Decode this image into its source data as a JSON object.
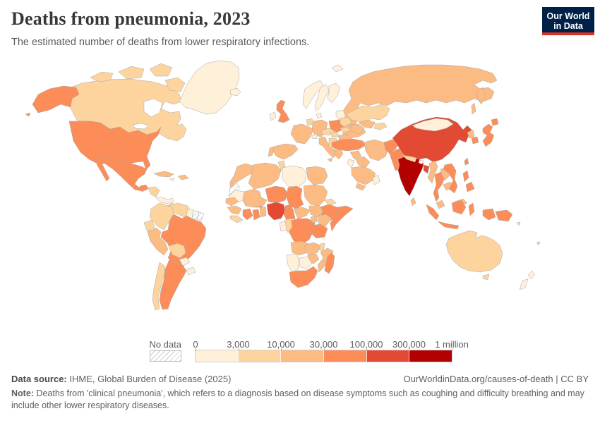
{
  "header": {
    "title": "Deaths from pneumonia, 2023",
    "subtitle": "The estimated number of deaths from lower respiratory infections."
  },
  "logo": {
    "line1": "Our World",
    "line2": "in Data",
    "bg_color": "#002147",
    "bar_color": "#dc3328"
  },
  "footer": {
    "source_label": "Data source:",
    "source_value": " IHME, Global Burden of Disease (2025)",
    "attribution": "OurWorldinData.org/causes-of-death | CC BY",
    "note_label": "Note:",
    "note_text": " Deaths from 'clinical pneumonia', which refers to a diagnosis based on disease symptoms such as coughing and difficulty breathing and may include other lower respiratory diseases."
  },
  "chart_data": {
    "type": "choropleth",
    "title": "Deaths from pneumonia, 2023",
    "metric": "Estimated number of deaths from lower respiratory infections",
    "year": 2023,
    "legend": {
      "no_data_label": "No data",
      "tick_labels": [
        "0",
        "3,000",
        "10,000",
        "30,000",
        "100,000",
        "300,000",
        "1 million"
      ],
      "border_color": "#a8a8a8"
    },
    "bins": [
      {
        "range": "0–3,000",
        "color": "#fef0d9"
      },
      {
        "range": "3,000–10,000",
        "color": "#fdd49e"
      },
      {
        "range": "10,000–30,000",
        "color": "#fdbb84"
      },
      {
        "range": "30,000–100,000",
        "color": "#fc8d59"
      },
      {
        "range": "100,000–300,000",
        "color": "#e34a33"
      },
      {
        "range": "300,000–1 million",
        "color": "#b30000"
      }
    ],
    "countries": [
      {
        "id": "canada",
        "name": "Canada",
        "bin": 2
      },
      {
        "id": "canada-arctic-1",
        "name": "Canada",
        "bin": 2
      },
      {
        "id": "canada-arctic-2",
        "name": "Canada",
        "bin": 2
      },
      {
        "id": "canada-arctic-3",
        "name": "Canada",
        "bin": 2
      },
      {
        "id": "canada-arctic-4",
        "name": "Canada",
        "bin": 2
      },
      {
        "id": "greenland",
        "name": "Greenland",
        "bin": 1
      },
      {
        "id": "usa",
        "name": "United States",
        "bin": 4
      },
      {
        "id": "alaska",
        "name": "United States",
        "bin": 4
      },
      {
        "id": "mexico",
        "name": "Mexico",
        "bin": 4
      },
      {
        "id": "guatemala",
        "name": "Guatemala",
        "bin": 4
      },
      {
        "id": "honduras",
        "name": "Honduras & Nicaragua",
        "bin": 2
      },
      {
        "id": "costa-rica-panama",
        "name": "Costa Rica & Panama",
        "bin": 1
      },
      {
        "id": "cuba",
        "name": "Cuba",
        "bin": 3
      },
      {
        "id": "hispaniola",
        "name": "Haiti & Dominican Republic",
        "bin": 3
      },
      {
        "id": "jamaica",
        "name": "Jamaica",
        "bin": 1
      },
      {
        "id": "colombia",
        "name": "Colombia",
        "bin": 2
      },
      {
        "id": "venezuela",
        "name": "Venezuela",
        "bin": 2
      },
      {
        "id": "guyana",
        "name": "Guyana",
        "bin": 1
      },
      {
        "id": "suriname",
        "name": "Suriname",
        "bin": "no-data"
      },
      {
        "id": "french-guiana",
        "name": "French Guiana",
        "bin": "no-data"
      },
      {
        "id": "ecuador",
        "name": "Ecuador",
        "bin": 2
      },
      {
        "id": "peru",
        "name": "Peru",
        "bin": 3
      },
      {
        "id": "brazil",
        "name": "Brazil",
        "bin": 4
      },
      {
        "id": "bolivia",
        "name": "Bolivia",
        "bin": 2
      },
      {
        "id": "paraguay",
        "name": "Paraguay",
        "bin": 1
      },
      {
        "id": "uruguay",
        "name": "Uruguay",
        "bin": 1
      },
      {
        "id": "argentina",
        "name": "Argentina",
        "bin": 4
      },
      {
        "id": "chile",
        "name": "Chile",
        "bin": 2
      },
      {
        "id": "iceland",
        "name": "Iceland",
        "bin": 1
      },
      {
        "id": "svalbard",
        "name": "Svalbard",
        "bin": 1
      },
      {
        "id": "uk",
        "name": "United Kingdom",
        "bin": 4
      },
      {
        "id": "ireland",
        "name": "Ireland",
        "bin": 1
      },
      {
        "id": "norway",
        "name": "Norway",
        "bin": 1
      },
      {
        "id": "sweden",
        "name": "Sweden",
        "bin": 1
      },
      {
        "id": "finland",
        "name": "Finland",
        "bin": 1
      },
      {
        "id": "denmark",
        "name": "Denmark",
        "bin": 1
      },
      {
        "id": "germany",
        "name": "Germany",
        "bin": 3
      },
      {
        "id": "benelux",
        "name": "Netherlands & Belgium",
        "bin": 2
      },
      {
        "id": "france",
        "name": "France",
        "bin": 3
      },
      {
        "id": "spain",
        "name": "Spain",
        "bin": 3
      },
      {
        "id": "portugal",
        "name": "Portugal",
        "bin": 3
      },
      {
        "id": "italy",
        "name": "Italy",
        "bin": 3
      },
      {
        "id": "switzerland",
        "name": "Switzerland",
        "bin": 1
      },
      {
        "id": "austria-czechia",
        "name": "Austria & Czechia",
        "bin": 2
      },
      {
        "id": "poland",
        "name": "Poland",
        "bin": 4
      },
      {
        "id": "baltics",
        "name": "Baltic states",
        "bin": 1
      },
      {
        "id": "belarus",
        "name": "Belarus",
        "bin": 2
      },
      {
        "id": "ukraine",
        "name": "Ukraine",
        "bin": 3
      },
      {
        "id": "romania",
        "name": "Romania",
        "bin": 3
      },
      {
        "id": "hungary",
        "name": "Hungary",
        "bin": 2
      },
      {
        "id": "balkans",
        "name": "Serbia & Western Balkans",
        "bin": 2
      },
      {
        "id": "bulgaria",
        "name": "Bulgaria",
        "bin": 2
      },
      {
        "id": "greece",
        "name": "Greece",
        "bin": 3
      },
      {
        "id": "russia",
        "name": "Russia",
        "bin": 3
      },
      {
        "id": "kazakhstan",
        "name": "Kazakhstan",
        "bin": 2
      },
      {
        "id": "uzbekistan",
        "name": "Uzbekistan",
        "bin": 3
      },
      {
        "id": "turkmenistan",
        "name": "Turkmenistan",
        "bin": 3
      },
      {
        "id": "kyrgyzstan-tajikistan",
        "name": "Kyrgyzstan & Tajikistan",
        "bin": 2
      },
      {
        "id": "caucasus",
        "name": "Caucasus states",
        "bin": 2
      },
      {
        "id": "turkey",
        "name": "Turkey",
        "bin": 4
      },
      {
        "id": "syria",
        "name": "Syria",
        "bin": 3
      },
      {
        "id": "iraq",
        "name": "Iraq",
        "bin": 3
      },
      {
        "id": "jordan-israel",
        "name": "Jordan & Israel",
        "bin": 1
      },
      {
        "id": "saudi-arabia",
        "name": "Saudi Arabia",
        "bin": 3
      },
      {
        "id": "yemen",
        "name": "Yemen",
        "bin": 3
      },
      {
        "id": "oman",
        "name": "Oman",
        "bin": 1
      },
      {
        "id": "iran",
        "name": "Iran",
        "bin": 3
      },
      {
        "id": "afghanistan",
        "name": "Afghanistan",
        "bin": 4
      },
      {
        "id": "pakistan",
        "name": "Pakistan",
        "bin": 4
      },
      {
        "id": "india",
        "name": "India",
        "bin": 6
      },
      {
        "id": "nepal",
        "name": "Nepal",
        "bin": 2
      },
      {
        "id": "bhutan",
        "name": "Bhutan",
        "bin": 1
      },
      {
        "id": "bangladesh",
        "name": "Bangladesh",
        "bin": 5
      },
      {
        "id": "sri-lanka",
        "name": "Sri Lanka",
        "bin": 3
      },
      {
        "id": "myanmar",
        "name": "Myanmar",
        "bin": 3
      },
      {
        "id": "thailand",
        "name": "Thailand",
        "bin": 4
      },
      {
        "id": "laos",
        "name": "Laos",
        "bin": 3
      },
      {
        "id": "cambodia",
        "name": "Cambodia",
        "bin": 3
      },
      {
        "id": "vietnam",
        "name": "Vietnam",
        "bin": 4
      },
      {
        "id": "malaysia",
        "name": "Malaysia",
        "bin": 3
      },
      {
        "id": "indonesia",
        "name": "Indonesia",
        "bin": 4
      },
      {
        "id": "philippines",
        "name": "Philippines",
        "bin": 4
      },
      {
        "id": "taiwan",
        "name": "Taiwan",
        "bin": 4
      },
      {
        "id": "china",
        "name": "China",
        "bin": 5
      },
      {
        "id": "mongolia",
        "name": "Mongolia",
        "bin": 1
      },
      {
        "id": "north-korea",
        "name": "North Korea",
        "bin": 3
      },
      {
        "id": "south-korea",
        "name": "South Korea",
        "bin": 4
      },
      {
        "id": "japan",
        "name": "Japan",
        "bin": 4
      },
      {
        "id": "morocco",
        "name": "Morocco",
        "bin": 3
      },
      {
        "id": "western-sahara",
        "name": "Western Sahara",
        "bin": "no-data"
      },
      {
        "id": "mauritania",
        "name": "Mauritania",
        "bin": 1
      },
      {
        "id": "senegal",
        "name": "Senegal",
        "bin": 3
      },
      {
        "id": "guinea",
        "name": "Guinea",
        "bin": 3
      },
      {
        "id": "sierra-leone-liberia",
        "name": "Sierra Leone & Liberia",
        "bin": 2
      },
      {
        "id": "cote-divoire",
        "name": "Cote d'Ivoire",
        "bin": 4
      },
      {
        "id": "ghana",
        "name": "Ghana",
        "bin": 4
      },
      {
        "id": "togo-benin",
        "name": "Togo & Benin",
        "bin": 3
      },
      {
        "id": "burkina-faso",
        "name": "Burkina Faso",
        "bin": 4
      },
      {
        "id": "mali",
        "name": "Mali",
        "bin": 3
      },
      {
        "id": "algeria",
        "name": "Algeria",
        "bin": 3
      },
      {
        "id": "tunisia",
        "name": "Tunisia",
        "bin": 2
      },
      {
        "id": "libya",
        "name": "Libya",
        "bin": 1
      },
      {
        "id": "egypt",
        "name": "Egypt",
        "bin": 3
      },
      {
        "id": "niger",
        "name": "Niger",
        "bin": 4
      },
      {
        "id": "chad",
        "name": "Chad",
        "bin": 4
      },
      {
        "id": "sudan",
        "name": "Sudan",
        "bin": 3
      },
      {
        "id": "eritrea",
        "name": "Eritrea",
        "bin": 2
      },
      {
        "id": "ethiopia",
        "name": "Ethiopia",
        "bin": 4
      },
      {
        "id": "somalia",
        "name": "Somalia",
        "bin": 4
      },
      {
        "id": "nigeria",
        "name": "Nigeria",
        "bin": 5
      },
      {
        "id": "cameroon",
        "name": "Cameroon",
        "bin": 4
      },
      {
        "id": "central-african-republic",
        "name": "Central African Republic",
        "bin": 3
      },
      {
        "id": "south-sudan",
        "name": "South Sudan",
        "bin": 3
      },
      {
        "id": "drc",
        "name": "Democratic Republic of Congo",
        "bin": 4
      },
      {
        "id": "congo",
        "name": "Congo",
        "bin": 2
      },
      {
        "id": "gabon",
        "name": "Gabon",
        "bin": 1
      },
      {
        "id": "uganda",
        "name": "Uganda",
        "bin": 3
      },
      {
        "id": "kenya",
        "name": "Kenya",
        "bin": 3
      },
      {
        "id": "tanzania",
        "name": "Tanzania",
        "bin": 4
      },
      {
        "id": "angola",
        "name": "Angola",
        "bin": 3
      },
      {
        "id": "zambia",
        "name": "Zambia",
        "bin": 3
      },
      {
        "id": "malawi",
        "name": "Malawi",
        "bin": 2
      },
      {
        "id": "mozambique",
        "name": "Mozambique",
        "bin": 3
      },
      {
        "id": "zimbabwe",
        "name": "Zimbabwe",
        "bin": 3
      },
      {
        "id": "botswana",
        "name": "Botswana",
        "bin": 1
      },
      {
        "id": "namibia",
        "name": "Namibia",
        "bin": 1
      },
      {
        "id": "south-africa",
        "name": "South Africa",
        "bin": 4
      },
      {
        "id": "madagascar",
        "name": "Madagascar",
        "bin": 4
      },
      {
        "id": "australia",
        "name": "Australia",
        "bin": 2
      },
      {
        "id": "papua-new-guinea",
        "name": "Papua New Guinea",
        "bin": 4
      },
      {
        "id": "new-zealand",
        "name": "New Zealand",
        "bin": 1
      },
      {
        "id": "solomon-islands",
        "name": "Solomon Islands",
        "bin": 2
      },
      {
        "id": "fiji",
        "name": "Fiji",
        "bin": 2
      }
    ]
  }
}
